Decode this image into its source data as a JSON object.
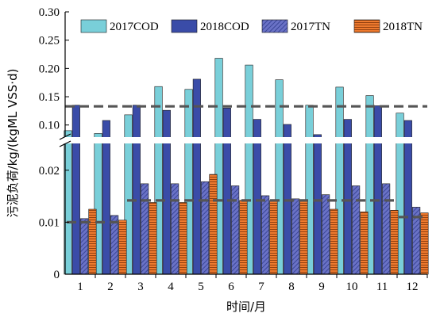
{
  "chart_data": {
    "type": "bar",
    "categories": [
      "1",
      "2",
      "3",
      "4",
      "5",
      "6",
      "7",
      "8",
      "9",
      "10",
      "11",
      "12"
    ],
    "series": [
      {
        "name": "2017COD",
        "values": [
          0.09,
          0.085,
          0.118,
          0.168,
          0.163,
          0.218,
          0.206,
          0.18,
          0.135,
          0.167,
          0.152,
          0.121
        ]
      },
      {
        "name": "2018COD",
        "values": [
          0.135,
          0.108,
          0.135,
          0.126,
          0.181,
          0.13,
          0.11,
          0.101,
          0.083,
          0.11,
          0.134,
          0.108
        ]
      },
      {
        "name": "2017TN",
        "values": [
          0.0107,
          0.0113,
          0.0174,
          0.0174,
          0.0178,
          0.017,
          0.0151,
          0.0145,
          0.0153,
          0.017,
          0.0174,
          0.0129
        ]
      },
      {
        "name": "2018TN",
        "values": [
          0.0125,
          0.0104,
          0.0138,
          0.0138,
          0.0192,
          0.0142,
          0.0142,
          0.0142,
          0.0125,
          0.012,
          0.0123,
          0.0118
        ]
      }
    ],
    "reference_lines": [
      {
        "value": 0.133,
        "segment": "upper"
      },
      {
        "value": 0.01,
        "categories": [
          "1",
          "2"
        ]
      },
      {
        "value": 0.0142,
        "categories": [
          "3",
          "4",
          "5",
          "6",
          "7",
          "8",
          "9",
          "10",
          "11"
        ]
      },
      {
        "value": 0.011,
        "categories": [
          "12"
        ]
      }
    ],
    "xlabel": "时间/月",
    "ylabel": "污泥负荷/kg/(kgML VSS·d)",
    "y_broken_axis": true,
    "ylim_lower": [
      0,
      0.025
    ],
    "ylim_upper": [
      0.08,
      0.3
    ],
    "yticks_lower": [
      "0",
      "0.01",
      "0.02"
    ],
    "yticks_upper": [
      "0.10",
      "0.15",
      "0.20",
      "0.25",
      "0.30"
    ],
    "legend_position": "top",
    "grid": false,
    "colors": {
      "2017COD": "#79CFD9",
      "2018COD": "#3A4CA8",
      "2017TN": "#6A72C6",
      "2017TN_hatch": "#2E3A8C",
      "2018TN": "#EE7A2E",
      "2018TN_hatch": "#8A3A0C",
      "reference_line": "#555555"
    }
  }
}
